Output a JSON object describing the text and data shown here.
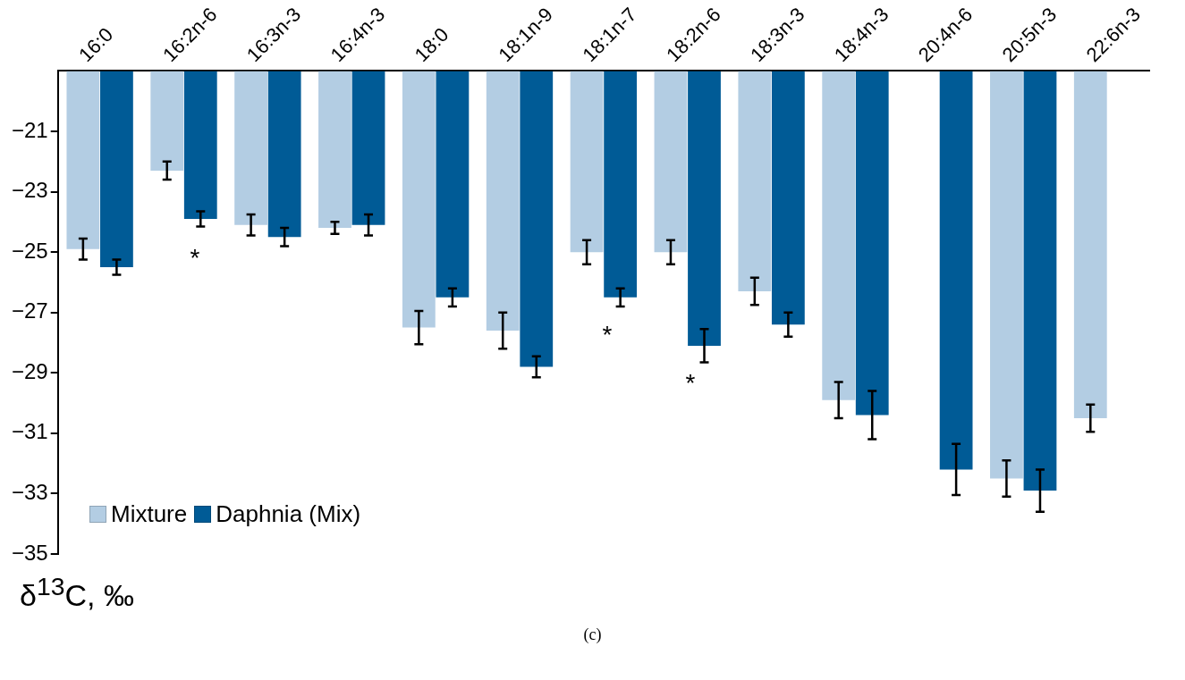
{
  "chart_data": {
    "type": "bar",
    "categories": [
      "16:0",
      "16:2n-6",
      "16:3n-3",
      "16:4n-3",
      "18:0",
      "18:1n-9",
      "18:1n-7",
      "18:2n-6",
      "18:3n-3",
      "18:4n-3",
      "20:4n-6",
      "20:5n-3",
      "22:6n-3"
    ],
    "series": [
      {
        "name": "Mixture",
        "color": "#b3cde3",
        "values": [
          -24.9,
          -22.3,
          -24.1,
          -24.2,
          -27.5,
          -27.6,
          -25.0,
          -25.0,
          -26.3,
          -29.9,
          null,
          -32.5,
          -30.5
        ],
        "errors": [
          0.35,
          0.3,
          0.35,
          0.2,
          0.55,
          0.6,
          0.4,
          0.4,
          0.45,
          0.6,
          null,
          0.6,
          0.45
        ]
      },
      {
        "name": "Daphnia (Mix)",
        "color": "#005b96",
        "values": [
          -25.5,
          -23.9,
          -24.5,
          -24.1,
          -26.5,
          -28.8,
          -26.5,
          -28.1,
          -27.4,
          -30.4,
          -32.2,
          -32.9,
          null
        ],
        "errors": [
          0.25,
          0.25,
          0.3,
          0.35,
          0.3,
          0.35,
          0.3,
          0.55,
          0.4,
          0.8,
          0.85,
          0.7,
          null
        ]
      }
    ],
    "ylim": [
      -35,
      -19
    ],
    "yticks": [
      -21,
      -23,
      -25,
      -27,
      -29,
      -31,
      -33,
      -35
    ],
    "ylabel": "δ$^{13}$C, ‰",
    "grid": false,
    "legend": "bottom left",
    "annotations": [
      "*",
      "*",
      "*",
      "(c)"
    ]
  }
}
